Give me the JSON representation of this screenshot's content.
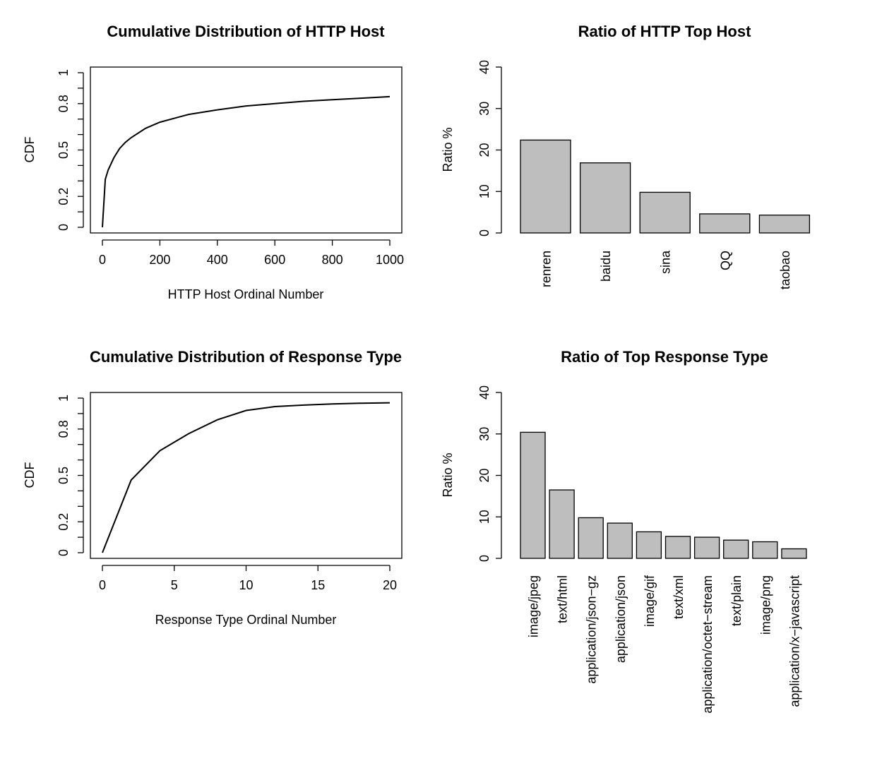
{
  "chart_data": [
    {
      "type": "line",
      "title": "Cumulative Distribution of HTTP Host",
      "xlabel": "HTTP Host Ordinal Number",
      "ylabel": "CDF",
      "x_ticks": [
        "0",
        "200",
        "400",
        "600",
        "800",
        "1000"
      ],
      "y_ticks": [
        "0",
        "0.2",
        "0.5",
        "0.8",
        "1"
      ],
      "xlim": [
        0,
        1000
      ],
      "ylim": [
        0,
        1
      ],
      "x": [
        0,
        10,
        20,
        40,
        60,
        80,
        100,
        150,
        200,
        300,
        400,
        500,
        600,
        700,
        800,
        900,
        1000
      ],
      "y": [
        0.0,
        0.31,
        0.37,
        0.45,
        0.51,
        0.55,
        0.58,
        0.64,
        0.68,
        0.73,
        0.76,
        0.785,
        0.8,
        0.815,
        0.825,
        0.835,
        0.845
      ]
    },
    {
      "type": "bar",
      "title": "Ratio of HTTP Top Host",
      "xlabel": "",
      "ylabel": "Ratio %",
      "ylim": [
        0,
        40
      ],
      "y_ticks": [
        "0",
        "10",
        "20",
        "30",
        "40"
      ],
      "categories": [
        "renren",
        "baidu",
        "sina",
        "QQ",
        "taobao"
      ],
      "values": [
        22.4,
        16.9,
        9.8,
        4.6,
        4.3
      ]
    },
    {
      "type": "line",
      "title": "Cumulative Distribution of Response Type",
      "xlabel": "Response Type Ordinal Number",
      "ylabel": "CDF",
      "x_ticks": [
        "0",
        "5",
        "10",
        "15",
        "20"
      ],
      "y_ticks": [
        "0",
        "0.2",
        "0.5",
        "0.8",
        "1"
      ],
      "xlim": [
        0,
        20
      ],
      "ylim": [
        0,
        1
      ],
      "x": [
        0,
        2,
        4,
        6,
        8,
        10,
        12,
        14,
        16,
        18,
        20
      ],
      "y": [
        0.0,
        0.47,
        0.66,
        0.77,
        0.86,
        0.92,
        0.945,
        0.955,
        0.962,
        0.967,
        0.97
      ]
    },
    {
      "type": "bar",
      "title": "Ratio of Top Response Type",
      "xlabel": "",
      "ylabel": "Ratio %",
      "ylim": [
        0,
        40
      ],
      "y_ticks": [
        "0",
        "10",
        "20",
        "30",
        "40"
      ],
      "categories": [
        "image/jpeg",
        "text/html",
        "application/json−gz",
        "application/json",
        "image/gif",
        "text/xml",
        "application/octet−stream",
        "text/plain",
        "image/png",
        "application/x−javascript"
      ],
      "values": [
        30.4,
        16.5,
        9.8,
        8.5,
        6.4,
        5.3,
        5.1,
        4.4,
        4.0,
        2.3
      ]
    }
  ]
}
